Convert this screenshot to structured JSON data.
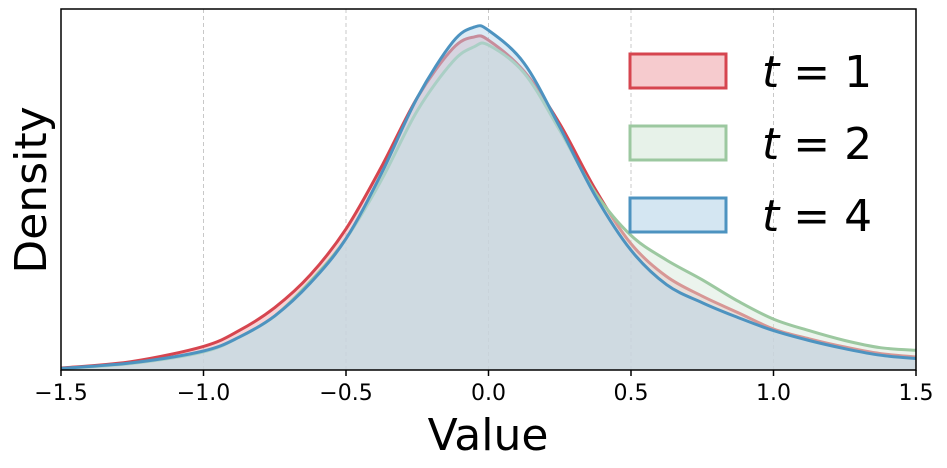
{
  "chart_data": {
    "type": "area",
    "xlabel": "Value",
    "ylabel": "Density",
    "xlim": [
      -1.5,
      1.5
    ],
    "ylim": [
      0,
      1.1
    ],
    "x_ticks": [
      "−1.5",
      "−1.0",
      "−0.5",
      "0.0",
      "0.5",
      "1.0",
      "1.5"
    ],
    "x_tick_values": [
      -1.5,
      -1.0,
      -0.5,
      0.0,
      0.5,
      1.0,
      1.5
    ],
    "y_ticks_shown": false,
    "grid": "vertical dashed",
    "legend_position": "top-right",
    "x": [
      -1.5,
      -1.25,
      -1.0,
      -0.875,
      -0.75,
      -0.625,
      -0.5,
      -0.375,
      -0.25,
      -0.125,
      -0.05,
      0.0,
      0.125,
      0.25,
      0.375,
      0.5,
      0.625,
      0.75,
      0.875,
      1.0,
      1.125,
      1.25,
      1.375,
      1.5
    ],
    "series": [
      {
        "name": "t = 1",
        "legend_var": "t",
        "legend_value": "1",
        "line_color": "#d6454f",
        "fill_color": "#f0a8ae",
        "values": [
          0.006,
          0.026,
          0.072,
          0.12,
          0.19,
          0.29,
          0.43,
          0.62,
          0.83,
          0.98,
          1.015,
          1.005,
          0.91,
          0.75,
          0.55,
          0.385,
          0.285,
          0.225,
          0.175,
          0.125,
          0.095,
          0.07,
          0.05,
          0.04
        ]
      },
      {
        "name": "t = 2",
        "legend_var": "t",
        "legend_value": "2",
        "line_color": "#9cc8a0",
        "fill_color": "#d7eadb",
        "values": [
          0.004,
          0.02,
          0.055,
          0.1,
          0.165,
          0.27,
          0.4,
          0.58,
          0.79,
          0.94,
          0.985,
          0.99,
          0.905,
          0.73,
          0.54,
          0.41,
          0.335,
          0.275,
          0.21,
          0.155,
          0.12,
          0.09,
          0.068,
          0.06
        ]
      },
      {
        "name": "t = 4",
        "legend_var": "t",
        "legend_value": "4",
        "line_color": "#4d93c0",
        "fill_color": "#b7d6ea",
        "values": [
          0.005,
          0.022,
          0.058,
          0.1,
          0.165,
          0.265,
          0.4,
          0.6,
          0.83,
          1.0,
          1.045,
          1.035,
          0.935,
          0.74,
          0.53,
          0.365,
          0.26,
          0.205,
          0.16,
          0.12,
          0.09,
          0.065,
          0.045,
          0.035
        ]
      }
    ]
  }
}
